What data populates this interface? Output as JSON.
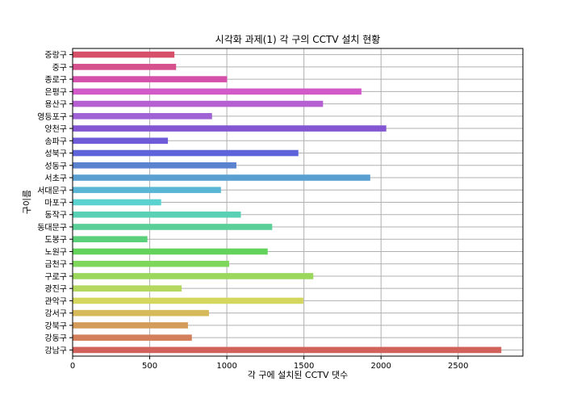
{
  "chart_data": {
    "type": "bar",
    "orientation": "horizontal",
    "title": "시각화 과제(1) 각 구의 CCTV 설치 현황",
    "xlabel": "각 구에 설치된 CCTV 댓수",
    "ylabel": "구이름",
    "xlim": [
      0,
      2920
    ],
    "xticks": [
      0,
      500,
      1000,
      1500,
      2000,
      2500
    ],
    "grid": true,
    "categories": [
      "중랑구",
      "중구",
      "종로구",
      "은평구",
      "용산구",
      "영등포구",
      "양천구",
      "송파구",
      "성북구",
      "성동구",
      "서초구",
      "서대문구",
      "마포구",
      "동작구",
      "동대문구",
      "도봉구",
      "노원구",
      "금천구",
      "구로구",
      "광진구",
      "관악구",
      "강서구",
      "강북구",
      "강동구",
      "강남구"
    ],
    "values": [
      660,
      671,
      1002,
      1873,
      1624,
      904,
      2034,
      618,
      1464,
      1062,
      1930,
      962,
      574,
      1091,
      1294,
      485,
      1265,
      1015,
      1561,
      707,
      1496,
      884,
      748,
      773,
      2780
    ],
    "colors": [
      "#d65069",
      "#d5508c",
      "#d550aa",
      "#d159c8",
      "#b55fd0",
      "#9e62d4",
      "#8357d1",
      "#6d5bd8",
      "#5e63d9",
      "#5a82cf",
      "#5a9fd1",
      "#5ab6d4",
      "#5ad2d0",
      "#5ad0b5",
      "#5ad098",
      "#5ad07a",
      "#63d35c",
      "#7ed65b",
      "#9bd65d",
      "#b4d85f",
      "#d3d75e",
      "#d5b95b",
      "#d49c5b",
      "#d47f5b",
      "#d1625b"
    ]
  }
}
